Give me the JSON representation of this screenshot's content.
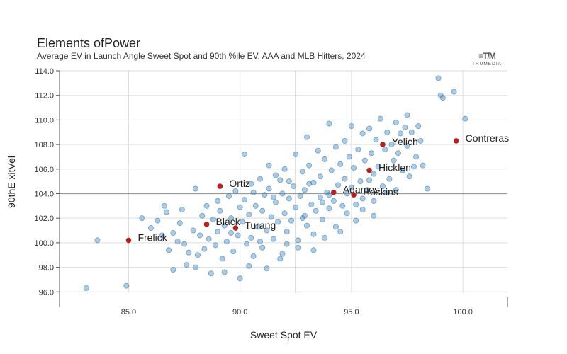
{
  "title": "Elements ofPower",
  "subtitle": "Average EV in Launch Angle Sweet Spot and 90th %ile EV, AAA and MLB Hitters, 2024",
  "logo": {
    "mark": "≡T/M",
    "text": "TRUMEDIA"
  },
  "colors": {
    "point": "#4a8cc2",
    "point_edge": "#2f6fa6",
    "highlight": "#b22222",
    "grid": "#dddddd",
    "axis": "#555555",
    "refline": "#999999"
  },
  "chart_data": {
    "type": "scatter",
    "title": "Elements ofPower",
    "subtitle": "Average EV in Launch Angle Sweet Spot and 90th %ile EV, AAA and MLB Hitters, 2024",
    "xlabel": "Sweet Spot EV",
    "ylabel": "90thE xitVel",
    "xlim": [
      81.9,
      102.0
    ],
    "ylim": [
      95.9,
      114.0
    ],
    "x_ticks": [
      85.0,
      90.0,
      95.0,
      100.0
    ],
    "x_tick_labels": [
      "85.0",
      "90.0",
      "95.0",
      "100.0"
    ],
    "y_ticks": [
      96.0,
      98.0,
      100.0,
      102.0,
      104.0,
      106.0,
      108.0,
      110.0,
      112.0,
      114.0
    ],
    "y_tick_labels": [
      "96.0",
      "98.0",
      "100.0",
      "102.0",
      "104.0",
      "106.0",
      "108.0",
      "110.0",
      "112.0",
      "114.0"
    ],
    "reference_lines": {
      "x": 92.5,
      "y": 104.0
    },
    "grid": true,
    "highlighted": [
      {
        "name": "Contreras",
        "x": 99.7,
        "y": 108.3
      },
      {
        "name": "Yelich",
        "x": 96.4,
        "y": 108.0
      },
      {
        "name": "Hicklen",
        "x": 95.8,
        "y": 105.9
      },
      {
        "name": "Adames",
        "x": 94.2,
        "y": 104.1
      },
      {
        "name": "Hoskins",
        "x": 95.1,
        "y": 103.9
      },
      {
        "name": "Ortiz",
        "x": 89.1,
        "y": 104.6
      },
      {
        "name": "Black",
        "x": 88.5,
        "y": 101.5
      },
      {
        "name": "Turang",
        "x": 89.8,
        "y": 101.2
      },
      {
        "name": "Frelick",
        "x": 85.0,
        "y": 100.2
      }
    ],
    "points": [
      [
        83.1,
        96.3
      ],
      [
        84.9,
        96.5
      ],
      [
        83.6,
        100.2
      ],
      [
        85.6,
        102.0
      ],
      [
        86.0,
        101.2
      ],
      [
        86.3,
        101.8
      ],
      [
        86.5,
        100.6
      ],
      [
        86.7,
        102.5
      ],
      [
        86.8,
        99.4
      ],
      [
        87.0,
        100.8
      ],
      [
        87.0,
        97.8
      ],
      [
        87.2,
        100.1
      ],
      [
        87.3,
        101.6
      ],
      [
        87.5,
        99.9
      ],
      [
        87.7,
        99.2
      ],
      [
        87.9,
        101.0
      ],
      [
        88.0,
        104.4
      ],
      [
        88.0,
        98.0
      ],
      [
        88.2,
        100.6
      ],
      [
        88.3,
        102.2
      ],
      [
        88.4,
        99.5
      ],
      [
        88.5,
        103.0
      ],
      [
        88.6,
        100.3
      ],
      [
        88.7,
        97.5
      ],
      [
        88.8,
        101.9
      ],
      [
        88.9,
        99.8
      ],
      [
        89.0,
        103.4
      ],
      [
        89.0,
        100.9
      ],
      [
        89.1,
        102.6
      ],
      [
        89.2,
        98.7
      ],
      [
        89.3,
        101.4
      ],
      [
        89.4,
        100.1
      ],
      [
        89.5,
        103.8
      ],
      [
        89.6,
        102.0
      ],
      [
        89.7,
        99.3
      ],
      [
        89.8,
        104.2
      ],
      [
        89.9,
        100.6
      ],
      [
        90.0,
        102.9
      ],
      [
        90.0,
        97.1
      ],
      [
        90.1,
        101.7
      ],
      [
        90.2,
        107.2
      ],
      [
        90.2,
        103.5
      ],
      [
        90.3,
        99.9
      ],
      [
        90.4,
        102.3
      ],
      [
        90.5,
        104.8
      ],
      [
        90.5,
        100.4
      ],
      [
        90.6,
        98.9
      ],
      [
        90.7,
        103.0
      ],
      [
        90.8,
        101.3
      ],
      [
        90.9,
        105.2
      ],
      [
        91.0,
        102.6
      ],
      [
        91.0,
        99.6
      ],
      [
        91.1,
        103.9
      ],
      [
        91.2,
        101.0
      ],
      [
        91.3,
        106.3
      ],
      [
        91.3,
        104.4
      ],
      [
        91.4,
        102.1
      ],
      [
        91.5,
        100.3
      ],
      [
        91.6,
        105.5
      ],
      [
        91.6,
        103.3
      ],
      [
        91.7,
        101.7
      ],
      [
        91.8,
        98.7
      ],
      [
        91.9,
        104.0
      ],
      [
        92.0,
        102.4
      ],
      [
        92.0,
        106.0
      ],
      [
        92.1,
        100.9
      ],
      [
        92.2,
        103.6
      ],
      [
        92.2,
        105.0
      ],
      [
        92.3,
        101.8
      ],
      [
        92.4,
        104.6
      ],
      [
        92.5,
        102.9
      ],
      [
        92.5,
        107.2
      ],
      [
        92.6,
        100.2
      ],
      [
        92.7,
        103.8
      ],
      [
        92.8,
        105.8
      ],
      [
        92.8,
        102.0
      ],
      [
        92.9,
        104.3
      ],
      [
        93.0,
        108.6
      ],
      [
        93.0,
        101.4
      ],
      [
        93.1,
        106.3
      ],
      [
        93.2,
        103.1
      ],
      [
        93.3,
        104.9
      ],
      [
        93.3,
        100.7
      ],
      [
        93.4,
        102.6
      ],
      [
        93.5,
        107.5
      ],
      [
        93.6,
        105.4
      ],
      [
        93.6,
        103.7
      ],
      [
        93.7,
        101.9
      ],
      [
        93.8,
        106.8
      ],
      [
        93.9,
        104.1
      ],
      [
        94.0,
        109.7
      ],
      [
        94.0,
        102.8
      ],
      [
        94.1,
        105.9
      ],
      [
        94.2,
        103.4
      ],
      [
        94.3,
        107.8
      ],
      [
        94.3,
        101.3
      ],
      [
        94.4,
        104.7
      ],
      [
        94.5,
        106.4
      ],
      [
        94.6,
        103.0
      ],
      [
        94.7,
        108.3
      ],
      [
        94.7,
        105.2
      ],
      [
        94.8,
        102.4
      ],
      [
        94.9,
        107.0
      ],
      [
        95.0,
        104.5
      ],
      [
        95.0,
        109.5
      ],
      [
        95.1,
        106.1
      ],
      [
        95.2,
        103.1
      ],
      [
        95.3,
        107.6
      ],
      [
        95.4,
        105.0
      ],
      [
        95.5,
        108.9
      ],
      [
        95.5,
        102.7
      ],
      [
        95.6,
        106.7
      ],
      [
        95.7,
        104.3
      ],
      [
        95.8,
        109.3
      ],
      [
        95.9,
        107.3
      ],
      [
        96.0,
        105.6
      ],
      [
        96.0,
        103.4
      ],
      [
        96.1,
        108.4
      ],
      [
        96.2,
        106.2
      ],
      [
        96.3,
        110.1
      ],
      [
        96.4,
        104.6
      ],
      [
        96.5,
        107.6
      ],
      [
        96.6,
        109.0
      ],
      [
        96.7,
        105.2
      ],
      [
        96.8,
        108.0
      ],
      [
        96.9,
        106.7
      ],
      [
        97.0,
        109.8
      ],
      [
        97.0,
        104.3
      ],
      [
        97.1,
        107.3
      ],
      [
        97.2,
        108.9
      ],
      [
        97.3,
        105.9
      ],
      [
        97.4,
        109.4
      ],
      [
        97.5,
        110.4
      ],
      [
        97.5,
        107.9
      ],
      [
        97.6,
        105.4
      ],
      [
        97.7,
        109.0
      ],
      [
        97.9,
        107.0
      ],
      [
        98.0,
        109.5
      ],
      [
        98.1,
        108.3
      ],
      [
        98.2,
        106.3
      ],
      [
        98.9,
        113.4
      ],
      [
        99.0,
        112.0
      ],
      [
        99.1,
        111.8
      ],
      [
        99.6,
        112.3
      ],
      [
        100.1,
        110.1
      ],
      [
        87.6,
        98.2
      ],
      [
        88.1,
        99.0
      ],
      [
        89.3,
        97.6
      ],
      [
        90.4,
        98.1
      ],
      [
        91.2,
        97.9
      ],
      [
        91.9,
        99.1
      ],
      [
        92.6,
        99.6
      ],
      [
        93.3,
        99.4
      ],
      [
        89.6,
        100.8
      ],
      [
        90.9,
        100.1
      ],
      [
        92.1,
        99.9
      ],
      [
        93.8,
        100.4
      ],
      [
        94.5,
        100.9
      ],
      [
        95.2,
        101.8
      ],
      [
        96.0,
        102.2
      ],
      [
        86.6,
        103.0
      ],
      [
        87.4,
        102.7
      ],
      [
        90.6,
        104.1
      ],
      [
        91.8,
        105.1
      ],
      [
        93.1,
        104.8
      ],
      [
        94.0,
        103.9
      ],
      [
        95.5,
        103.6
      ],
      [
        96.6,
        104.1
      ],
      [
        97.8,
        106.2
      ],
      [
        98.4,
        104.4
      ],
      [
        91.5,
        103.7
      ],
      [
        92.9,
        102.2
      ],
      [
        93.7,
        103.3
      ],
      [
        94.8,
        104.0
      ],
      [
        95.8,
        105.1
      ]
    ]
  }
}
